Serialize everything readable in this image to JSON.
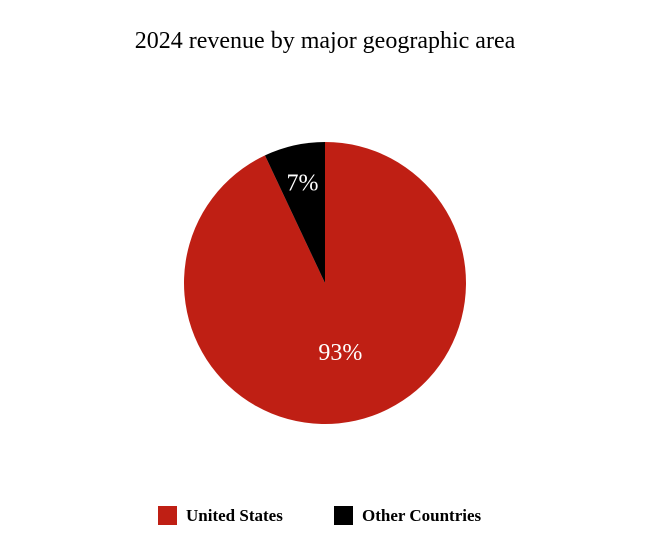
{
  "chart_data": {
    "type": "pie",
    "title": "2024 revenue by major geographic area",
    "series": [
      {
        "name": "United States",
        "value": 93,
        "label": "93%",
        "color": "#bf1f14"
      },
      {
        "name": "Other Countries",
        "value": 7,
        "label": "7%",
        "color": "#000000"
      }
    ],
    "unit": "%",
    "start_angle_deg": 0,
    "direction": "clockwise",
    "legend_position": "bottom"
  }
}
